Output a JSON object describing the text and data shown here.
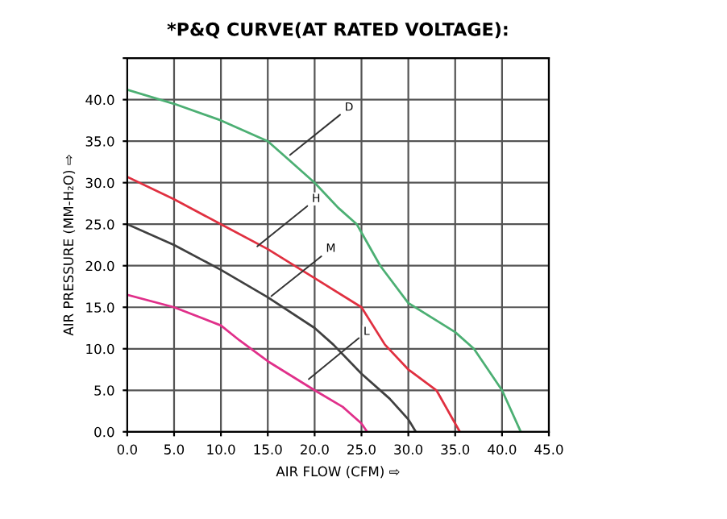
{
  "chart_data": {
    "type": "line",
    "title": "*P&Q CURVE(AT RATED VOLTAGE):",
    "xlabel": "AIR FLOW (CFM) ⇨",
    "ylabel": "AIR PRESSURE (MM-H₂O) ⇨",
    "series": [
      {
        "color": "#4caf73",
        "x": [
          0,
          5,
          10,
          15,
          17,
          20,
          22.5,
          24.5,
          27,
          30,
          35,
          37,
          40,
          42
        ],
        "values": [
          41.2,
          39.5,
          37.5,
          35,
          33,
          30,
          27,
          25,
          20,
          15.5,
          12,
          10,
          5,
          0
        ]
      },
      {
        "color": "#e03040",
        "x": [
          0,
          5,
          10,
          15,
          20,
          25,
          27.5,
          30,
          33,
          34.5,
          35.5
        ],
        "values": [
          30.7,
          28,
          25,
          22,
          18.5,
          15,
          10.5,
          7.5,
          5,
          2,
          0
        ]
      },
      {
        "color": "#404040",
        "x": [
          0,
          5,
          10,
          15,
          20,
          22,
          25,
          28,
          30,
          30.8
        ],
        "values": [
          25,
          22.5,
          19.5,
          16.2,
          12.5,
          10.5,
          7,
          4,
          1.5,
          0
        ]
      },
      {
        "color": "#e0308a",
        "x": [
          0,
          5,
          10,
          12,
          15,
          20,
          23,
          25,
          25.6
        ],
        "values": [
          16.5,
          15,
          12.8,
          11,
          8.5,
          5,
          3,
          1,
          0
        ]
      }
    ],
    "annotations": [
      {
        "text": "D",
        "x": 17,
        "y": 33
      },
      {
        "text": "H",
        "x": 13.5,
        "y": 22
      },
      {
        "text": "M",
        "x": 15,
        "y": 16
      },
      {
        "text": "L",
        "x": 19,
        "y": 6
      }
    ],
    "xlim": [
      0,
      45
    ],
    "ylim": [
      0,
      45
    ],
    "xticks": [
      {
        "value": 0,
        "label": "0.0"
      },
      {
        "value": 5,
        "label": "5.0"
      },
      {
        "value": 10,
        "label": "10.0"
      },
      {
        "value": 15,
        "label": "15.0"
      },
      {
        "value": 20,
        "label": "20.0"
      },
      {
        "value": 25,
        "label": "25.0"
      },
      {
        "value": 30,
        "label": "30.0"
      },
      {
        "value": 35,
        "label": "35.0"
      },
      {
        "value": 40,
        "label": "40.0"
      },
      {
        "value": 45,
        "label": "45.0"
      }
    ],
    "yticks": [
      {
        "value": 0,
        "label": "0.0"
      },
      {
        "value": 5,
        "label": "5.0"
      },
      {
        "value": 10,
        "label": "10.0"
      },
      {
        "value": 15,
        "label": "15.0"
      },
      {
        "value": 20,
        "label": "20.0"
      },
      {
        "value": 25,
        "label": "25.0"
      },
      {
        "value": 30,
        "label": "30.0"
      },
      {
        "value": 35,
        "label": "35.0"
      },
      {
        "value": 40,
        "label": "40.0"
      },
      {
        "value": 45,
        "label": null
      }
    ],
    "grid": true,
    "marker": "none",
    "line_style": "solid"
  }
}
